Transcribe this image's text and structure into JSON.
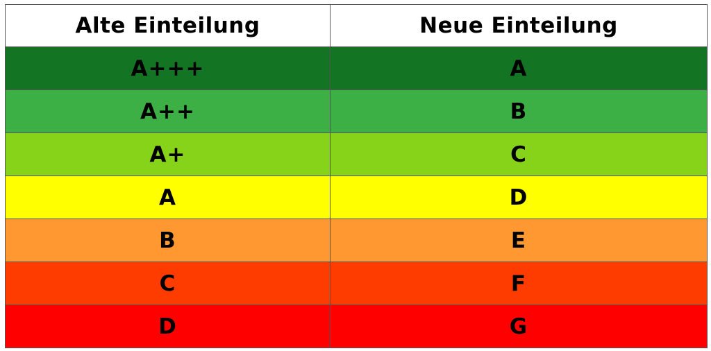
{
  "chart_data": {
    "type": "table",
    "columns": [
      "Alte Einteilung",
      "Neue Einteilung"
    ],
    "rows": [
      {
        "old": "A+++",
        "new": "A",
        "color": "#137423"
      },
      {
        "old": "A++",
        "new": "B",
        "color": "#3cb044"
      },
      {
        "old": "A+",
        "new": "C",
        "color": "#86d319"
      },
      {
        "old": "A",
        "new": "D",
        "color": "#ffff00"
      },
      {
        "old": "B",
        "new": "E",
        "color": "#ff9830"
      },
      {
        "old": "C",
        "new": "F",
        "color": "#ff3c00"
      },
      {
        "old": "D",
        "new": "G",
        "color": "#ff0000"
      }
    ]
  }
}
